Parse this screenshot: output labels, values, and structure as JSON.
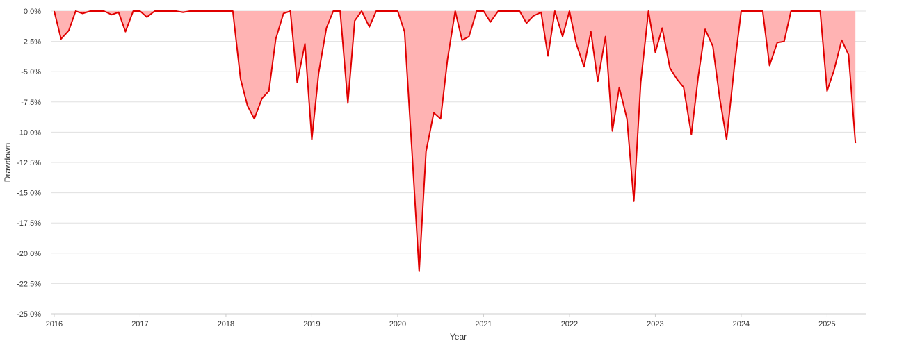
{
  "chart_data": {
    "type": "area",
    "title": "",
    "xlabel": "Year",
    "ylabel": "Drawdown",
    "xlim": [
      2015.96,
      2025.45
    ],
    "ylim": [
      -25,
      0
    ],
    "grid": true,
    "legend": "none",
    "colors": {
      "line": "#e00000",
      "fill": "#ffb3b3"
    },
    "x_ticks": [
      {
        "value": 2016,
        "label": "2016"
      },
      {
        "value": 2017,
        "label": "2017"
      },
      {
        "value": 2018,
        "label": "2018"
      },
      {
        "value": 2019,
        "label": "2019"
      },
      {
        "value": 2020,
        "label": "2020"
      },
      {
        "value": 2021,
        "label": "2021"
      },
      {
        "value": 2022,
        "label": "2022"
      },
      {
        "value": 2023,
        "label": "2023"
      },
      {
        "value": 2024,
        "label": "2024"
      },
      {
        "value": 2025,
        "label": "2025"
      }
    ],
    "y_ticks": [
      {
        "value": 0,
        "label": "0.0%"
      },
      {
        "value": -2.5,
        "label": "-2.5%"
      },
      {
        "value": -5,
        "label": "-5.0%"
      },
      {
        "value": -7.5,
        "label": "-7.5%"
      },
      {
        "value": -10,
        "label": "-10.0%"
      },
      {
        "value": -12.5,
        "label": "-12.5%"
      },
      {
        "value": -15,
        "label": "-15.0%"
      },
      {
        "value": -17.5,
        "label": "-17.5%"
      },
      {
        "value": -20,
        "label": "-20.0%"
      },
      {
        "value": -22.5,
        "label": "-22.5%"
      },
      {
        "value": -25,
        "label": "-25.0%"
      }
    ],
    "series": [
      {
        "points": [
          [
            2016.0,
            0
          ],
          [
            2016.08,
            -2.3
          ],
          [
            2016.17,
            -1.6
          ],
          [
            2016.25,
            0
          ],
          [
            2016.33,
            -0.2
          ],
          [
            2016.42,
            0
          ],
          [
            2016.5,
            0
          ],
          [
            2016.58,
            0
          ],
          [
            2016.67,
            -0.3
          ],
          [
            2016.75,
            -0.1
          ],
          [
            2016.83,
            -1.7
          ],
          [
            2016.92,
            0
          ],
          [
            2017.0,
            0
          ],
          [
            2017.08,
            -0.5
          ],
          [
            2017.17,
            0
          ],
          [
            2017.25,
            0
          ],
          [
            2017.33,
            0
          ],
          [
            2017.42,
            0
          ],
          [
            2017.5,
            -0.1
          ],
          [
            2017.58,
            0
          ],
          [
            2017.67,
            0
          ],
          [
            2017.75,
            0
          ],
          [
            2017.83,
            0
          ],
          [
            2017.92,
            0
          ],
          [
            2018.0,
            0
          ],
          [
            2018.08,
            0
          ],
          [
            2018.17,
            -5.6
          ],
          [
            2018.25,
            -7.8
          ],
          [
            2018.33,
            -8.9
          ],
          [
            2018.42,
            -7.2
          ],
          [
            2018.5,
            -6.6
          ],
          [
            2018.58,
            -2.3
          ],
          [
            2018.67,
            -0.2
          ],
          [
            2018.75,
            0
          ],
          [
            2018.83,
            -5.9
          ],
          [
            2018.92,
            -2.7
          ],
          [
            2019.0,
            -10.6
          ],
          [
            2019.08,
            -5.1
          ],
          [
            2019.17,
            -1.4
          ],
          [
            2019.25,
            0
          ],
          [
            2019.33,
            0
          ],
          [
            2019.42,
            -7.6
          ],
          [
            2019.5,
            -0.8
          ],
          [
            2019.58,
            0
          ],
          [
            2019.67,
            -1.3
          ],
          [
            2019.75,
            0
          ],
          [
            2019.83,
            0
          ],
          [
            2019.92,
            0
          ],
          [
            2020.0,
            0
          ],
          [
            2020.08,
            -1.7
          ],
          [
            2020.17,
            -12.0
          ],
          [
            2020.25,
            -21.5
          ],
          [
            2020.33,
            -11.6
          ],
          [
            2020.42,
            -8.4
          ],
          [
            2020.5,
            -8.9
          ],
          [
            2020.58,
            -4.0
          ],
          [
            2020.67,
            0
          ],
          [
            2020.75,
            -2.4
          ],
          [
            2020.83,
            -2.1
          ],
          [
            2020.92,
            0
          ],
          [
            2021.0,
            0
          ],
          [
            2021.08,
            -0.9
          ],
          [
            2021.17,
            0
          ],
          [
            2021.25,
            0
          ],
          [
            2021.33,
            0
          ],
          [
            2021.42,
            0
          ],
          [
            2021.5,
            -1.0
          ],
          [
            2021.58,
            -0.4
          ],
          [
            2021.67,
            -0.1
          ],
          [
            2021.75,
            -3.7
          ],
          [
            2021.83,
            0
          ],
          [
            2021.92,
            -2.1
          ],
          [
            2022.0,
            0
          ],
          [
            2022.08,
            -2.7
          ],
          [
            2022.17,
            -4.6
          ],
          [
            2022.25,
            -1.7
          ],
          [
            2022.33,
            -5.8
          ],
          [
            2022.42,
            -2.1
          ],
          [
            2022.5,
            -9.9
          ],
          [
            2022.58,
            -6.3
          ],
          [
            2022.67,
            -8.9
          ],
          [
            2022.75,
            -15.7
          ],
          [
            2022.83,
            -5.9
          ],
          [
            2022.92,
            0
          ],
          [
            2023.0,
            -3.4
          ],
          [
            2023.08,
            -1.4
          ],
          [
            2023.17,
            -4.7
          ],
          [
            2023.25,
            -5.6
          ],
          [
            2023.33,
            -6.3
          ],
          [
            2023.42,
            -10.2
          ],
          [
            2023.5,
            -5.4
          ],
          [
            2023.58,
            -1.5
          ],
          [
            2023.67,
            -2.9
          ],
          [
            2023.75,
            -7.2
          ],
          [
            2023.83,
            -10.6
          ],
          [
            2023.92,
            -4.6
          ],
          [
            2024.0,
            0
          ],
          [
            2024.08,
            0
          ],
          [
            2024.17,
            0
          ],
          [
            2024.25,
            0
          ],
          [
            2024.33,
            -4.5
          ],
          [
            2024.42,
            -2.6
          ],
          [
            2024.5,
            -2.5
          ],
          [
            2024.58,
            0
          ],
          [
            2024.67,
            0
          ],
          [
            2024.75,
            0
          ],
          [
            2024.83,
            0
          ],
          [
            2024.92,
            0
          ],
          [
            2025.0,
            -6.6
          ],
          [
            2025.08,
            -4.9
          ],
          [
            2025.17,
            -2.4
          ],
          [
            2025.25,
            -3.6
          ],
          [
            2025.33,
            -10.9
          ]
        ]
      }
    ]
  }
}
